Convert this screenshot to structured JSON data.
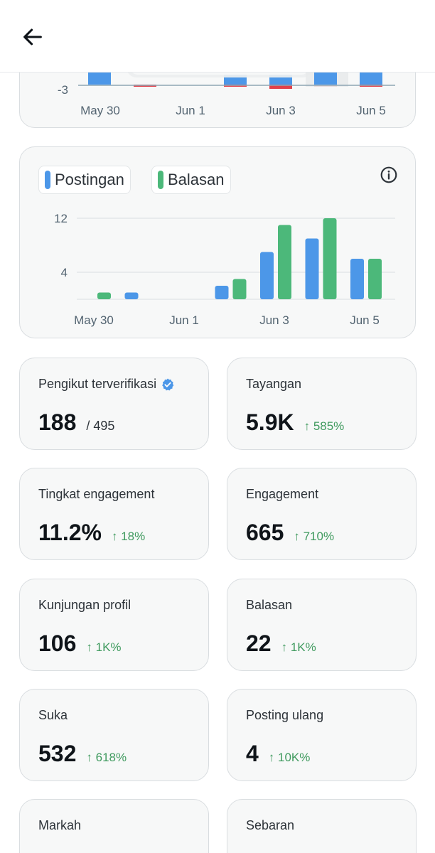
{
  "header": {
    "back_icon": "arrow-left-icon"
  },
  "top_chart": {
    "y_tick": "-3",
    "x_ticks": [
      "May 30",
      "Jun 1",
      "Jun 3",
      "Jun 5"
    ]
  },
  "activity_chart": {
    "info_icon": "info-icon",
    "legend": {
      "posts_label": "Postingan",
      "replies_label": "Balasan"
    },
    "colors": {
      "posts": "#4c97e8",
      "replies": "#4cb87a"
    }
  },
  "chart_data": {
    "type": "bar",
    "categories": [
      "May 30",
      "May 31",
      "Jun 1",
      "Jun 2",
      "Jun 3",
      "Jun 4",
      "Jun 5"
    ],
    "x_tick_labels": [
      "May 30",
      "Jun 1",
      "Jun 3",
      "Jun 5"
    ],
    "y_tick_labels": [
      "12",
      "4"
    ],
    "series": [
      {
        "name": "Postingan",
        "values": [
          0,
          1,
          0,
          2,
          7,
          9,
          6
        ]
      },
      {
        "name": "Balasan",
        "values": [
          1,
          0,
          0,
          3,
          11,
          12,
          6
        ]
      }
    ],
    "ylim": [
      0,
      12
    ],
    "grid": true,
    "legend_position": "top-left"
  },
  "stats": [
    {
      "label": "Pengikut terverifikasi",
      "value": "188",
      "sub": "/ 495",
      "verified_icon": "verified-badge-icon"
    },
    {
      "label": "Tayangan",
      "value": "5.9K",
      "change": "↑ 585%"
    },
    {
      "label": "Tingkat engagement",
      "value": "11.2%",
      "change": "↑ 18%"
    },
    {
      "label": "Engagement",
      "value": "665",
      "change": "↑ 710%"
    },
    {
      "label": "Kunjungan profil",
      "value": "106",
      "change": "↑ 1K%"
    },
    {
      "label": "Balasan",
      "value": "22",
      "change": "↑ 1K%"
    },
    {
      "label": "Suka",
      "value": "532",
      "change": "↑ 618%"
    },
    {
      "label": "Posting ulang",
      "value": "4",
      "change": "↑ 10K%"
    },
    {
      "label": "Markah"
    },
    {
      "label": "Sebaran"
    }
  ]
}
